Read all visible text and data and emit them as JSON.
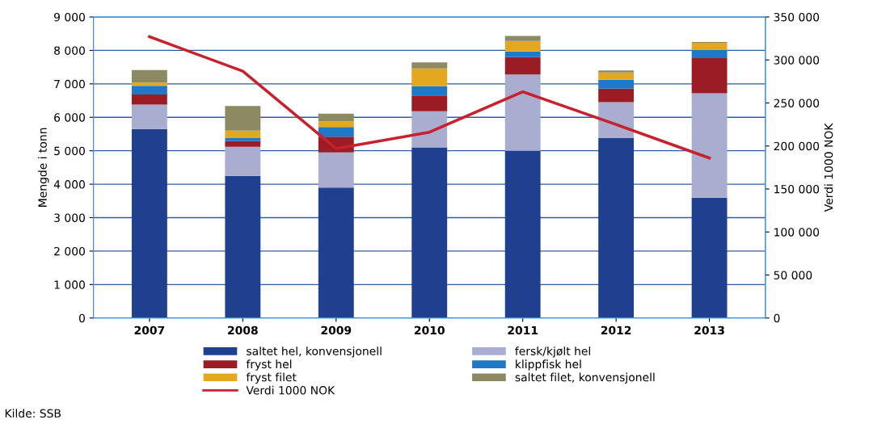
{
  "chart_data": {
    "type": "bar",
    "stacked": true,
    "categories": [
      "2007",
      "2008",
      "2009",
      "2010",
      "2011",
      "2012",
      "2013"
    ],
    "series": [
      {
        "name": "saltet hel, konvensjonell",
        "color": "#1f3f8f",
        "values": [
          5650,
          4250,
          3900,
          5100,
          5000,
          5380,
          3600
        ]
      },
      {
        "name": "fersk/kjølt hel",
        "color": "#a9aed0",
        "values": [
          730,
          870,
          1050,
          1080,
          2280,
          1070,
          3120
        ]
      },
      {
        "name": "fryst hel",
        "color": "#9b1c24",
        "values": [
          300,
          170,
          470,
          470,
          520,
          410,
          1050
        ]
      },
      {
        "name": "klippfisk hel",
        "color": "#1f78c8",
        "values": [
          260,
          90,
          290,
          280,
          170,
          260,
          240
        ]
      },
      {
        "name": "fryst filet",
        "color": "#e3a81f",
        "values": [
          100,
          220,
          170,
          530,
          310,
          220,
          220
        ]
      },
      {
        "name": "saltet filet, konvensjonell",
        "color": "#8b8a62",
        "values": [
          370,
          740,
          230,
          180,
          150,
          60,
          20
        ]
      },
      {
        "name": "Verdi 1000 NOK",
        "type": "line",
        "axis": "y2",
        "color": "#c8202d",
        "values": [
          327000,
          287000,
          197000,
          216000,
          263000,
          225000,
          186000
        ]
      }
    ],
    "ylabel": "Mengde i tonn",
    "y2label": "Verdi 1000 NOK",
    "ylim": [
      0,
      9000
    ],
    "yticks": [
      {
        "value": 0,
        "label": "0"
      },
      {
        "value": 1000,
        "label": "1 000"
      },
      {
        "value": 2000,
        "label": "2 000"
      },
      {
        "value": 3000,
        "label": "3 000"
      },
      {
        "value": 4000,
        "label": "4 000"
      },
      {
        "value": 5000,
        "label": "5 000"
      },
      {
        "value": 6000,
        "label": "6 000"
      },
      {
        "value": 7000,
        "label": "7 000"
      },
      {
        "value": 8000,
        "label": "8 000"
      },
      {
        "value": 9000,
        "label": "9 000"
      }
    ],
    "y2lim": [
      0,
      350000
    ],
    "y2ticks": [
      {
        "value": 0,
        "label": "0"
      },
      {
        "value": 50000,
        "label": "50 000"
      },
      {
        "value": 100000,
        "label": "100 000"
      },
      {
        "value": 150000,
        "label": "150 000"
      },
      {
        "value": 200000,
        "label": "200 000"
      },
      {
        "value": 250000,
        "label": "250 000"
      },
      {
        "value": 300000,
        "label": "300 000"
      },
      {
        "value": 350000,
        "label": "350 000"
      }
    ],
    "grid": "y",
    "legend": "bottom",
    "annotations": [
      "Kilde: SSB"
    ]
  }
}
